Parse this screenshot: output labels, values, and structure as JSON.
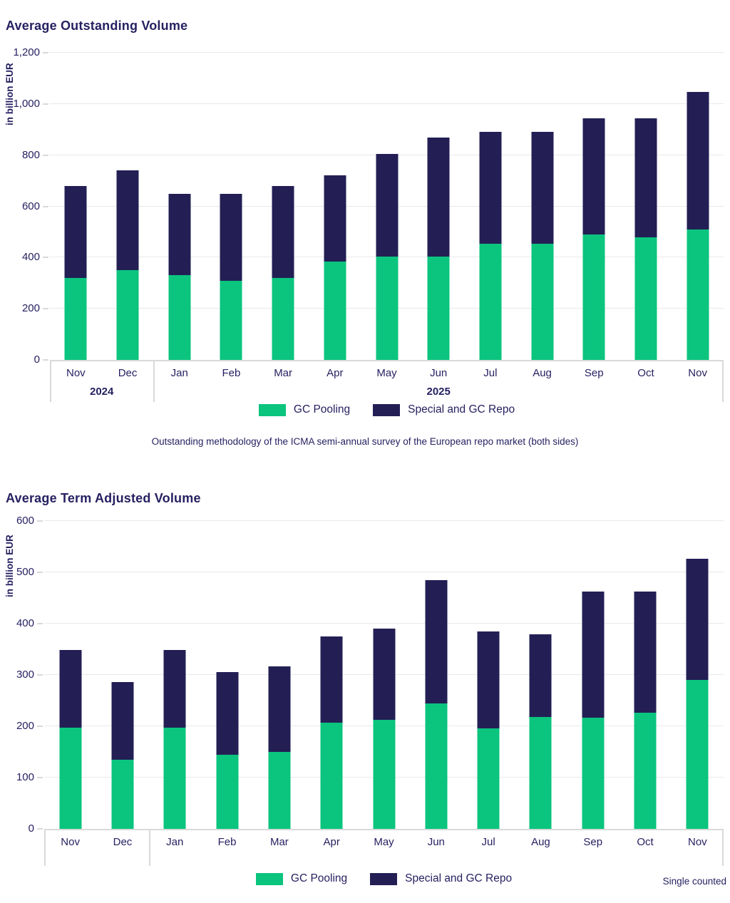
{
  "colors": {
    "gc_pooling_green": "#0bc47e",
    "special_repo_navy": "#231f55",
    "text_navy": "#262161",
    "gridline": "#e9e9e9",
    "axis_line": "#d9d9d9"
  },
  "chart_data": [
    {
      "type": "bar",
      "stacked": true,
      "title": "Average Outstanding Volume",
      "ylabel": "in billion EUR",
      "ylim": [
        0,
        1200
      ],
      "ytick_step": 200,
      "ytick_labels": [
        "0",
        "200",
        "400",
        "600",
        "800",
        "1,000",
        "1,200"
      ],
      "grid": true,
      "legend_position": "bottom",
      "categories": [
        "Nov",
        "Dec",
        "Jan",
        "Feb",
        "Mar",
        "Apr",
        "May",
        "Jun",
        "Jul",
        "Aug",
        "Sep",
        "Oct",
        "Nov"
      ],
      "year_groups": [
        {
          "label": "2024",
          "count": 2
        },
        {
          "label": "2025",
          "count": 11
        }
      ],
      "series": [
        {
          "name": "GC Pooling",
          "color": "#0bc47e",
          "values": [
            320,
            350,
            330,
            310,
            320,
            385,
            405,
            405,
            455,
            455,
            490,
            480,
            510
          ]
        },
        {
          "name": "Special and GC Repo",
          "color": "#231f55",
          "values": [
            360,
            392,
            318,
            338,
            360,
            337,
            400,
            465,
            435,
            435,
            454,
            464,
            538
          ]
        }
      ],
      "footnote": "Outstanding methodology of the ICMA semi-annual survey of the European repo market (both sides)"
    },
    {
      "type": "bar",
      "stacked": true,
      "title": "Average Term Adjusted Volume",
      "ylabel": "in billion EUR",
      "ylim": [
        0,
        600
      ],
      "ytick_step": 100,
      "ytick_labels": [
        "0",
        "100",
        "200",
        "300",
        "400",
        "500",
        "600"
      ],
      "grid": true,
      "legend_position": "bottom",
      "categories": [
        "Nov",
        "Dec",
        "Jan",
        "Feb",
        "Mar",
        "Apr",
        "May",
        "Jun",
        "Jul",
        "Aug",
        "Sep",
        "Oct",
        "Nov"
      ],
      "year_groups": [
        {
          "label": "",
          "count": 2
        },
        {
          "label": "",
          "count": 11
        }
      ],
      "series": [
        {
          "name": "GC Pooling",
          "color": "#0bc47e",
          "values": [
            197,
            135,
            197,
            145,
            150,
            207,
            213,
            245,
            196,
            218,
            217,
            227,
            290
          ]
        },
        {
          "name": "Special and GC Repo",
          "color": "#231f55",
          "values": [
            152,
            151,
            152,
            161,
            167,
            168,
            177,
            240,
            189,
            161,
            246,
            236,
            236
          ]
        }
      ],
      "note": "Single counted"
    }
  ]
}
